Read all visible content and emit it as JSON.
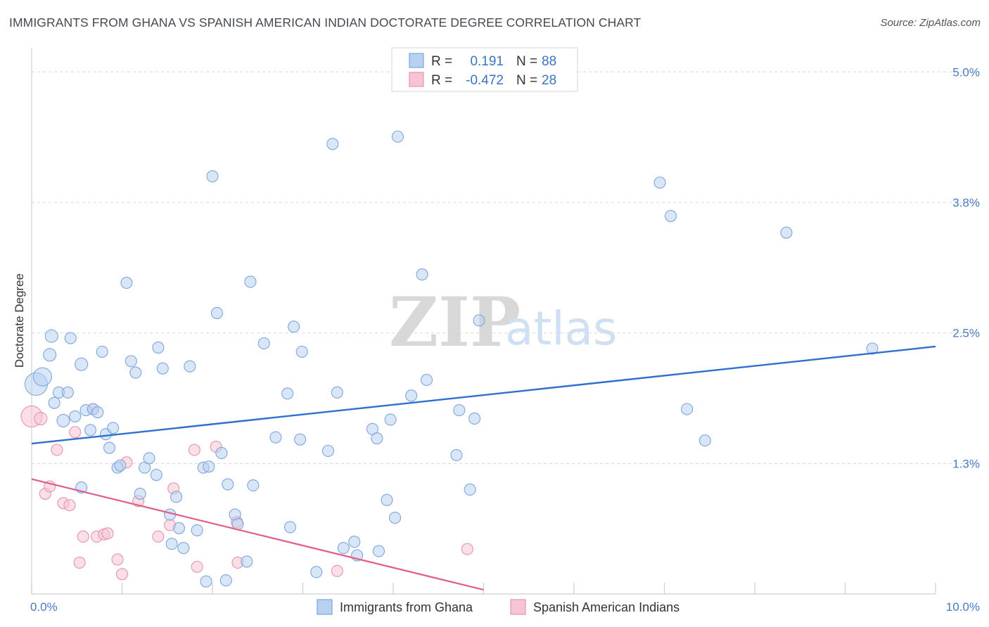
{
  "title": "IMMIGRANTS FROM GHANA VS SPANISH AMERICAN INDIAN DOCTORATE DEGREE CORRELATION CHART",
  "source": "Source: ZipAtlas.com",
  "watermark": {
    "zip": "ZIP",
    "atlas": "atlas"
  },
  "colors": {
    "blue_fill": "#b8d1f0",
    "blue_stroke": "#7ea6dc",
    "blue_line": "#2e6fcf",
    "pink_fill": "#f7c4d4",
    "pink_stroke": "#e892ae",
    "pink_line": "#e0608a",
    "grid": "#d9d9d9",
    "tick_text": "#4a7cc4"
  },
  "legend": {
    "rows": [
      {
        "r_label": "R =",
        "r_value": "0.191",
        "n_label": "N =",
        "n_value": "88"
      },
      {
        "r_label": "R =",
        "r_value": "-0.472",
        "n_label": "N =",
        "n_value": "28"
      }
    ]
  },
  "chart_data": {
    "type": "scatter",
    "title": "IMMIGRANTS FROM GHANA VS SPANISH AMERICAN INDIAN DOCTORATE DEGREE CORRELATION CHART",
    "xlabel": "",
    "ylabel": "Doctorate Degree",
    "xlim": [
      0,
      10
    ],
    "ylim": [
      0,
      5.15
    ],
    "x_tick_labels": {
      "min": "0.0%",
      "max": "10.0%"
    },
    "y_ticks": [
      {
        "value": 1.25,
        "label": "1.3%"
      },
      {
        "value": 2.5,
        "label": "2.5%"
      },
      {
        "value": 3.75,
        "label": "3.8%"
      },
      {
        "value": 5.0,
        "label": "5.0%"
      }
    ],
    "series": [
      {
        "name": "Immigrants from Ghana",
        "color": "blue",
        "trend": {
          "x": [
            0,
            10
          ],
          "y": [
            1.44,
            2.37
          ]
        },
        "points": [
          [
            0.05,
            2.01,
            16
          ],
          [
            0.12,
            2.08,
            13
          ],
          [
            0.2,
            2.29,
            9
          ],
          [
            0.22,
            2.47,
            9
          ],
          [
            0.25,
            1.83,
            8
          ],
          [
            0.3,
            1.93,
            8
          ],
          [
            0.35,
            1.66,
            9
          ],
          [
            0.4,
            1.93,
            8
          ],
          [
            0.43,
            2.45,
            8
          ],
          [
            0.48,
            1.7,
            8
          ],
          [
            0.55,
            1.02,
            8
          ],
          [
            0.55,
            2.2,
            9
          ],
          [
            0.6,
            1.76,
            8
          ],
          [
            0.65,
            1.57,
            8
          ],
          [
            0.68,
            1.77,
            8
          ],
          [
            0.73,
            1.74,
            8
          ],
          [
            0.78,
            2.32,
            8
          ],
          [
            0.82,
            1.53,
            8
          ],
          [
            0.86,
            1.4,
            8
          ],
          [
            0.9,
            1.59,
            8
          ],
          [
            0.95,
            1.21,
            8
          ],
          [
            0.98,
            1.23,
            8
          ],
          [
            1.05,
            2.98,
            8
          ],
          [
            1.1,
            2.23,
            8
          ],
          [
            1.15,
            2.12,
            8
          ],
          [
            1.2,
            0.96,
            8
          ],
          [
            1.25,
            1.21,
            8
          ],
          [
            1.3,
            1.3,
            8
          ],
          [
            1.38,
            1.14,
            8
          ],
          [
            1.4,
            2.36,
            8
          ],
          [
            1.45,
            2.16,
            8
          ],
          [
            1.53,
            0.76,
            8
          ],
          [
            1.55,
            0.48,
            8
          ],
          [
            1.6,
            0.93,
            8
          ],
          [
            1.63,
            0.63,
            8
          ],
          [
            1.68,
            0.44,
            8
          ],
          [
            1.75,
            2.18,
            8
          ],
          [
            1.83,
            0.61,
            8
          ],
          [
            1.9,
            1.21,
            8
          ],
          [
            1.93,
            0.12,
            8
          ],
          [
            1.96,
            1.22,
            8
          ],
          [
            2.0,
            4.0,
            8
          ],
          [
            2.05,
            2.69,
            8
          ],
          [
            2.1,
            1.35,
            8
          ],
          [
            2.15,
            0.13,
            8
          ],
          [
            2.17,
            1.05,
            8
          ],
          [
            2.25,
            0.76,
            8
          ],
          [
            2.28,
            0.67,
            8
          ],
          [
            2.38,
            0.31,
            8
          ],
          [
            2.42,
            2.99,
            8
          ],
          [
            2.45,
            1.04,
            8
          ],
          [
            2.57,
            2.4,
            8
          ],
          [
            2.7,
            1.5,
            8
          ],
          [
            2.83,
            1.92,
            8
          ],
          [
            2.86,
            0.64,
            8
          ],
          [
            2.9,
            2.56,
            8
          ],
          [
            2.97,
            1.48,
            8
          ],
          [
            2.99,
            2.32,
            8
          ],
          [
            3.15,
            0.21,
            8
          ],
          [
            3.28,
            1.37,
            8
          ],
          [
            3.33,
            4.31,
            8
          ],
          [
            3.38,
            1.93,
            8
          ],
          [
            3.45,
            0.44,
            8
          ],
          [
            3.57,
            0.5,
            8
          ],
          [
            3.6,
            0.37,
            8
          ],
          [
            3.77,
            1.58,
            8
          ],
          [
            3.82,
            1.49,
            8
          ],
          [
            3.84,
            0.41,
            8
          ],
          [
            3.93,
            0.9,
            8
          ],
          [
            3.97,
            1.67,
            8
          ],
          [
            4.02,
            0.73,
            8
          ],
          [
            4.05,
            4.38,
            8
          ],
          [
            4.2,
            1.9,
            8
          ],
          [
            4.32,
            3.06,
            8
          ],
          [
            4.37,
            2.05,
            8
          ],
          [
            4.7,
            1.33,
            8
          ],
          [
            4.73,
            1.76,
            8
          ],
          [
            4.85,
            1.0,
            8
          ],
          [
            4.9,
            1.68,
            8
          ],
          [
            4.95,
            2.62,
            8
          ],
          [
            6.95,
            3.94,
            8
          ],
          [
            7.07,
            3.62,
            8
          ],
          [
            7.25,
            1.77,
            8
          ],
          [
            7.45,
            1.47,
            8
          ],
          [
            8.35,
            3.46,
            8
          ],
          [
            9.3,
            2.35,
            8
          ]
        ]
      },
      {
        "name": "Spanish American Indians",
        "color": "pink",
        "trend": {
          "x": [
            0,
            5.0
          ],
          "y": [
            1.1,
            0.04
          ]
        },
        "points": [
          [
            0.0,
            1.7,
            15
          ],
          [
            0.1,
            1.68,
            9
          ],
          [
            0.28,
            1.38,
            8
          ],
          [
            0.15,
            0.96,
            8
          ],
          [
            0.2,
            1.03,
            8
          ],
          [
            0.35,
            0.87,
            8
          ],
          [
            0.42,
            0.85,
            8
          ],
          [
            0.48,
            1.55,
            8
          ],
          [
            0.53,
            0.3,
            8
          ],
          [
            0.57,
            0.55,
            8
          ],
          [
            0.68,
            1.77,
            8
          ],
          [
            0.72,
            0.55,
            8
          ],
          [
            0.8,
            0.57,
            8
          ],
          [
            0.84,
            0.58,
            8
          ],
          [
            0.95,
            0.33,
            8
          ],
          [
            1.0,
            0.19,
            8
          ],
          [
            1.05,
            1.26,
            8
          ],
          [
            1.18,
            0.89,
            8
          ],
          [
            1.4,
            0.55,
            8
          ],
          [
            1.53,
            0.66,
            8
          ],
          [
            1.57,
            1.01,
            8
          ],
          [
            1.8,
            1.38,
            8
          ],
          [
            1.83,
            0.26,
            8
          ],
          [
            2.04,
            1.41,
            8
          ],
          [
            2.27,
            0.69,
            8
          ],
          [
            2.28,
            0.3,
            8
          ],
          [
            3.38,
            0.22,
            8
          ],
          [
            4.82,
            0.43,
            8
          ]
        ]
      }
    ]
  },
  "bottom_legend": [
    "Immigrants from Ghana",
    "Spanish American Indians"
  ]
}
